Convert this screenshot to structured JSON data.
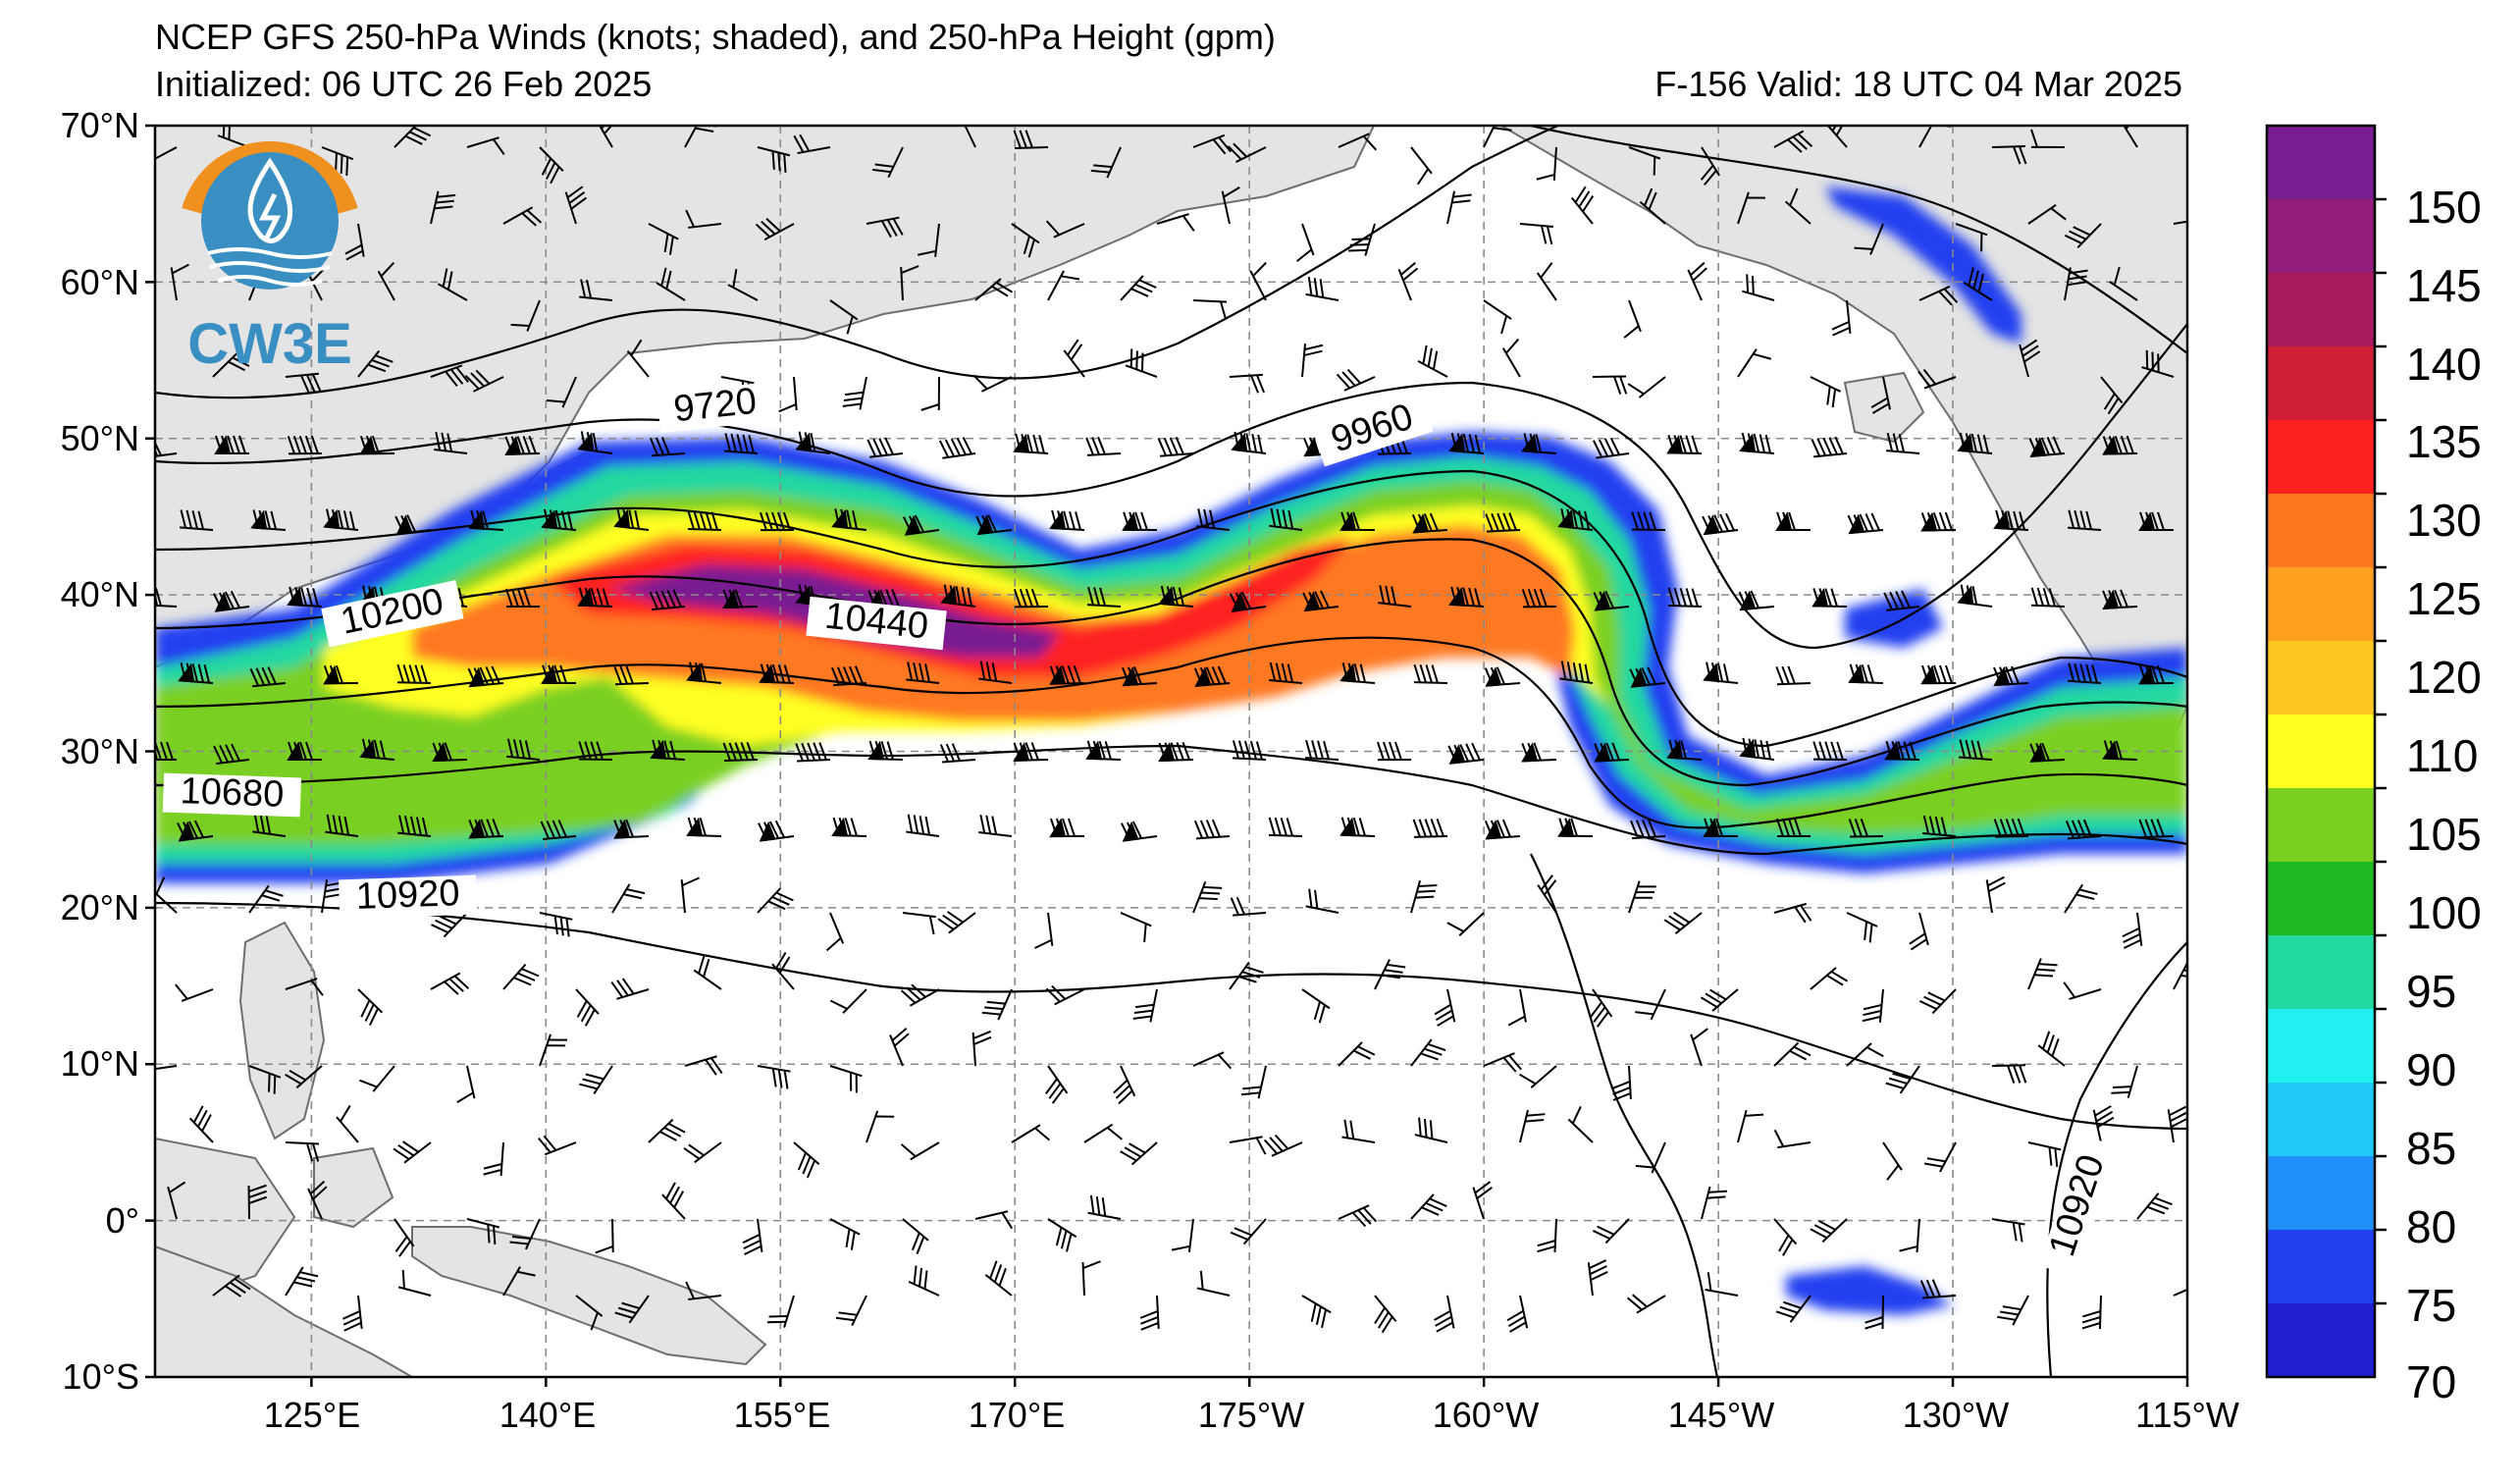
{
  "header": {
    "title": "NCEP GFS 250-hPa Winds (knots; shaded), and 250-hPa Height (gpm)",
    "initialized": "Initialized: 06 UTC 26 Feb 2025",
    "valid": "F-156  Valid: 18 UTC 04 Mar 2025"
  },
  "logo": {
    "text": "CW3E",
    "color": "#3a8fc2",
    "accent": "#f0901e"
  },
  "map": {
    "lat_labels": [
      "70°N",
      "60°N",
      "50°N",
      "40°N",
      "30°N",
      "20°N",
      "10°N",
      "0°",
      "10°S"
    ],
    "lon_labels": [
      "125°E",
      "140°E",
      "155°E",
      "170°E",
      "175°W",
      "160°W",
      "145°W",
      "130°W",
      "115°W"
    ],
    "contour_labels": [
      "9720",
      "9960",
      "10200",
      "10440",
      "10680",
      "10920",
      "10920"
    ]
  },
  "colorbar": {
    "tick_labels": [
      "150",
      "145",
      "140",
      "135",
      "130",
      "125",
      "120",
      "110",
      "105",
      "100",
      "95",
      "90",
      "85",
      "80",
      "75",
      "70"
    ],
    "colors": [
      "#7a1d91",
      "#931d7a",
      "#a81b5c",
      "#cf1f36",
      "#ff2020",
      "#ff7820",
      "#ffa020",
      "#ffc820",
      "#ffff20",
      "#7ad020",
      "#20b820",
      "#20d8a0",
      "#20f0f0",
      "#20c8f8",
      "#2090f8",
      "#2040f0",
      "#2020d0"
    ]
  }
}
